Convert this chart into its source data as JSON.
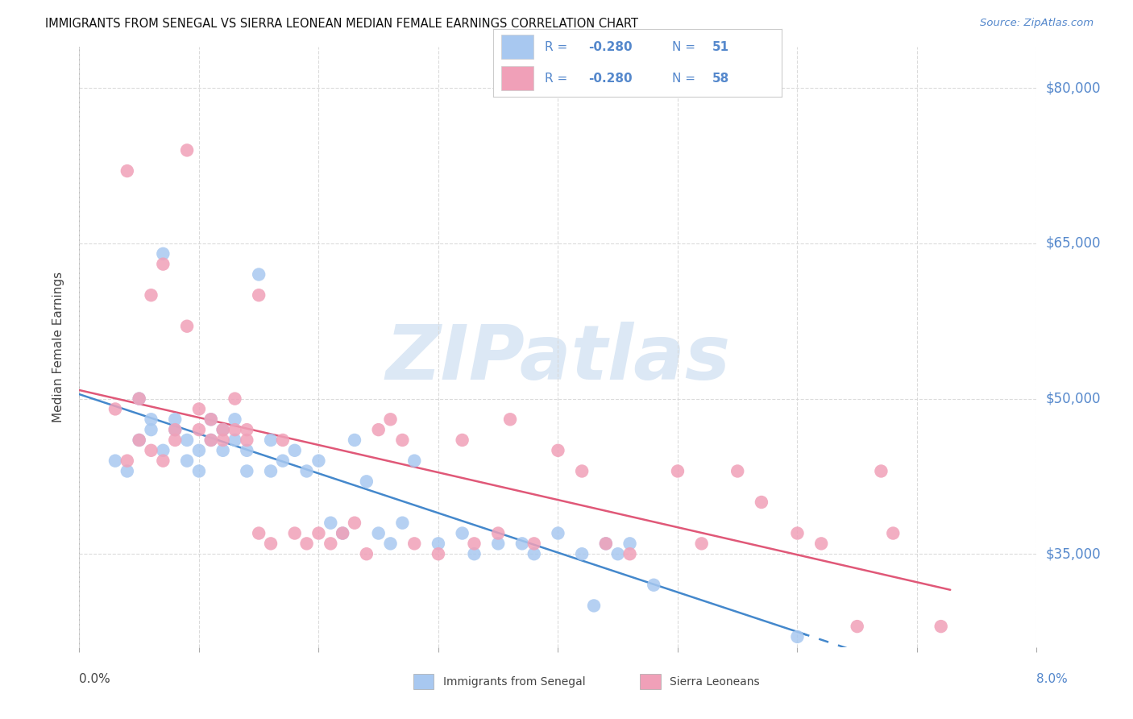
{
  "title": "IMMIGRANTS FROM SENEGAL VS SIERRA LEONEAN MEDIAN FEMALE EARNINGS CORRELATION CHART",
  "source": "Source: ZipAtlas.com",
  "ylabel": "Median Female Earnings",
  "yticks": [
    35000,
    50000,
    65000,
    80000
  ],
  "ytick_labels": [
    "$35,000",
    "$50,000",
    "$65,000",
    "$80,000"
  ],
  "ymin": 26000,
  "ymax": 84000,
  "xmin": 0.0,
  "xmax": 0.08,
  "series1_color": "#a8c8f0",
  "series2_color": "#f0a0b8",
  "line1_color": "#4488cc",
  "line2_color": "#e05878",
  "watermark_color": "#dce8f5",
  "background_color": "#ffffff",
  "title_fontsize": 10.5,
  "right_label_color": "#5588cc",
  "axis_color": "#555555",
  "grid_color": "#d8d8d8",
  "legend_color": "#5588cc",
  "senegal_x": [
    0.003,
    0.004,
    0.005,
    0.005,
    0.006,
    0.006,
    0.007,
    0.007,
    0.008,
    0.008,
    0.009,
    0.009,
    0.01,
    0.01,
    0.011,
    0.011,
    0.012,
    0.012,
    0.013,
    0.013,
    0.014,
    0.014,
    0.015,
    0.016,
    0.016,
    0.017,
    0.018,
    0.019,
    0.02,
    0.021,
    0.022,
    0.023,
    0.024,
    0.025,
    0.026,
    0.027,
    0.028,
    0.03,
    0.032,
    0.033,
    0.035,
    0.037,
    0.038,
    0.04,
    0.042,
    0.043,
    0.044,
    0.045,
    0.046,
    0.048,
    0.06
  ],
  "senegal_y": [
    44000,
    43000,
    46000,
    50000,
    47000,
    48000,
    45000,
    64000,
    47000,
    48000,
    44000,
    46000,
    43000,
    45000,
    48000,
    46000,
    47000,
    45000,
    48000,
    46000,
    43000,
    45000,
    62000,
    43000,
    46000,
    44000,
    45000,
    43000,
    44000,
    38000,
    37000,
    46000,
    42000,
    37000,
    36000,
    38000,
    44000,
    36000,
    37000,
    35000,
    36000,
    36000,
    35000,
    37000,
    35000,
    30000,
    36000,
    35000,
    36000,
    32000,
    27000
  ],
  "sierra_x": [
    0.003,
    0.004,
    0.004,
    0.005,
    0.005,
    0.006,
    0.006,
    0.007,
    0.007,
    0.008,
    0.008,
    0.009,
    0.009,
    0.01,
    0.01,
    0.011,
    0.011,
    0.012,
    0.012,
    0.013,
    0.013,
    0.014,
    0.014,
    0.015,
    0.015,
    0.016,
    0.017,
    0.018,
    0.019,
    0.02,
    0.021,
    0.022,
    0.023,
    0.024,
    0.025,
    0.026,
    0.027,
    0.028,
    0.03,
    0.032,
    0.033,
    0.035,
    0.036,
    0.038,
    0.04,
    0.042,
    0.044,
    0.046,
    0.05,
    0.052,
    0.055,
    0.057,
    0.06,
    0.062,
    0.065,
    0.067,
    0.068,
    0.072
  ],
  "sierra_y": [
    49000,
    72000,
    44000,
    50000,
    46000,
    45000,
    60000,
    44000,
    63000,
    47000,
    46000,
    74000,
    57000,
    49000,
    47000,
    46000,
    48000,
    46000,
    47000,
    50000,
    47000,
    46000,
    47000,
    37000,
    60000,
    36000,
    46000,
    37000,
    36000,
    37000,
    36000,
    37000,
    38000,
    35000,
    47000,
    48000,
    46000,
    36000,
    35000,
    46000,
    36000,
    37000,
    48000,
    36000,
    45000,
    43000,
    36000,
    35000,
    43000,
    36000,
    43000,
    40000,
    37000,
    36000,
    28000,
    43000,
    37000,
    28000
  ]
}
